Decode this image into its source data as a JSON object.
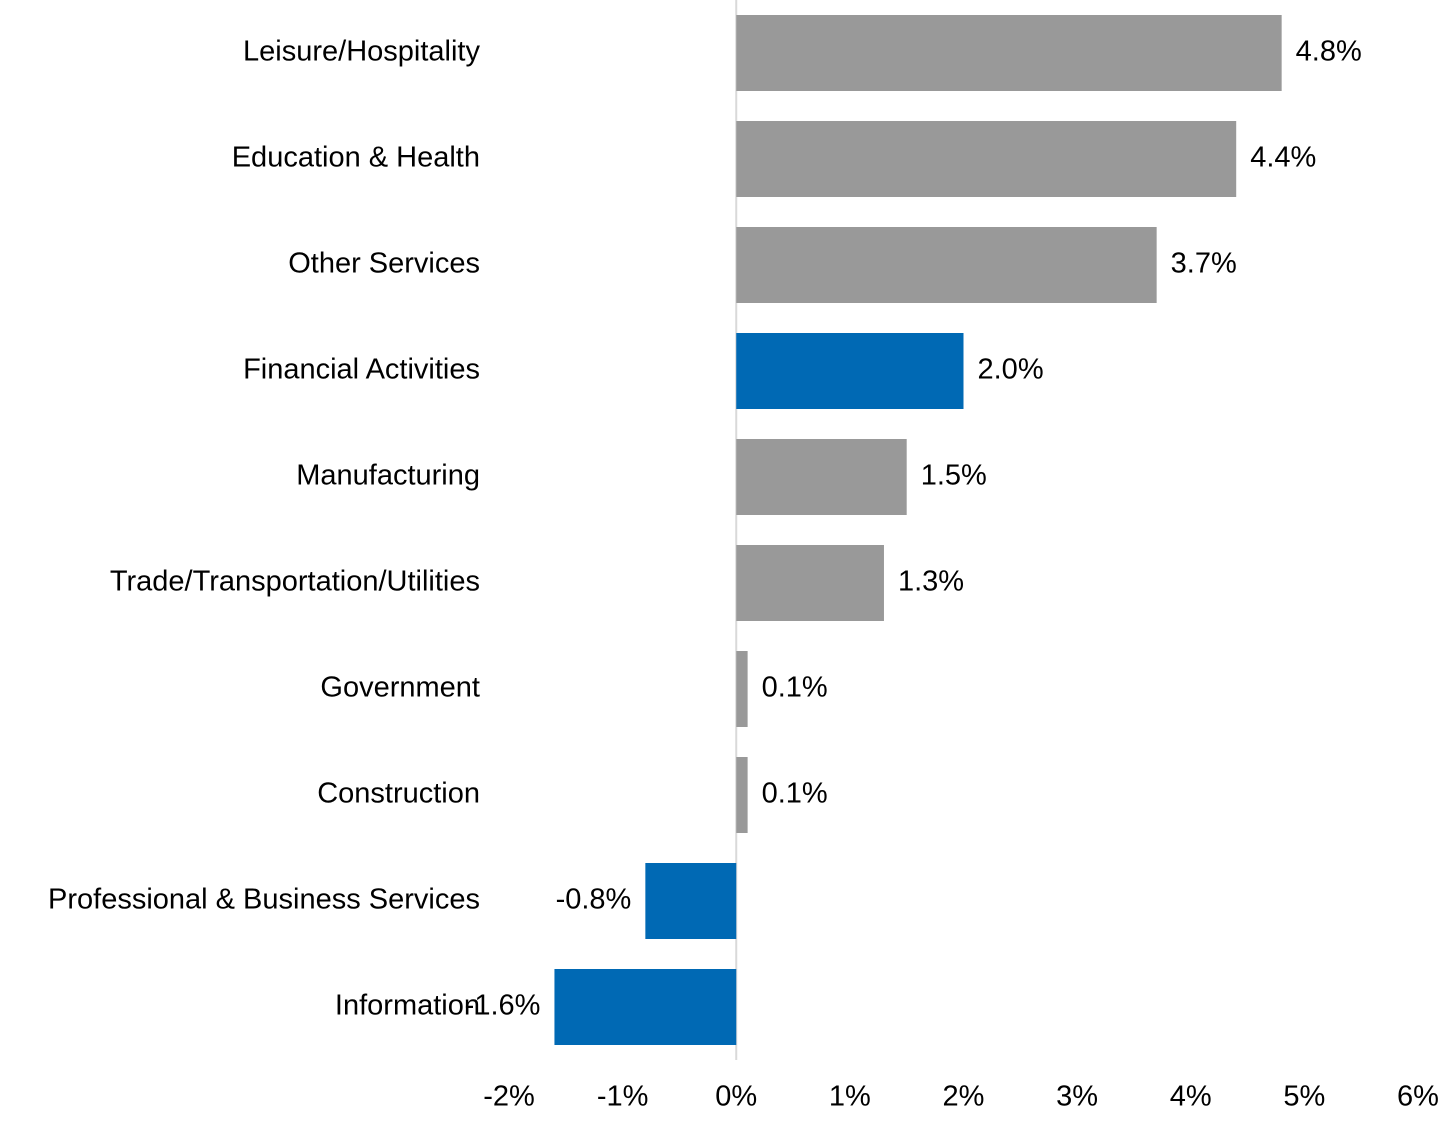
{
  "chart_data": {
    "type": "bar",
    "orientation": "horizontal",
    "categories": [
      "Leisure/Hospitality",
      "Education & Health",
      "Other Services",
      "Financial Activities",
      "Manufacturing",
      "Trade/Transportation/Utilities",
      "Government",
      "Construction",
      "Professional & Business Services",
      "Information"
    ],
    "values": [
      4.8,
      4.4,
      3.7,
      2.0,
      1.5,
      1.3,
      0.1,
      0.1,
      -0.8,
      -1.6
    ],
    "value_labels": [
      "4.8%",
      "4.4%",
      "3.7%",
      "2.0%",
      "1.5%",
      "1.3%",
      "0.1%",
      "0.1%",
      "-0.8%",
      "-1.6%"
    ],
    "colors": [
      "#999999",
      "#999999",
      "#999999",
      "#0069b4",
      "#999999",
      "#999999",
      "#999999",
      "#999999",
      "#0069b4",
      "#0069b4"
    ],
    "xlim": [
      -2,
      6
    ],
    "xticks": [
      {
        "value": -2,
        "label": "-2%"
      },
      {
        "value": -1,
        "label": "-1%"
      },
      {
        "value": 0,
        "label": "0%"
      },
      {
        "value": 1,
        "label": "1%"
      },
      {
        "value": 2,
        "label": "2%"
      },
      {
        "value": 3,
        "label": "3%"
      },
      {
        "value": 4,
        "label": "4%"
      },
      {
        "value": 5,
        "label": "5%"
      },
      {
        "value": 6,
        "label": "6%"
      }
    ]
  }
}
